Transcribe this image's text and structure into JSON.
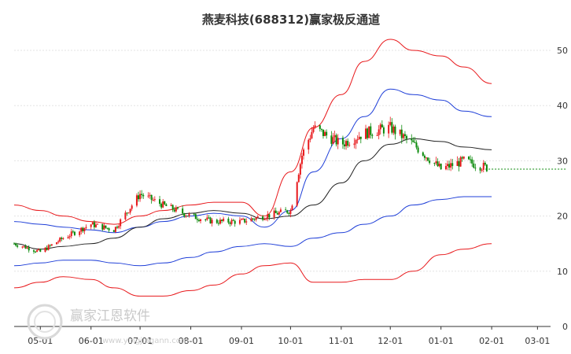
{
  "chart_data": {
    "type": "line",
    "title": "燕麦科技(688312)赢家极反通道",
    "y_ticks": [
      0,
      10,
      20,
      30,
      40,
      50
    ],
    "ylim": [
      0,
      52
    ],
    "x_ticks": [
      "05-01",
      "06-01",
      "07-01",
      "08-01",
      "09-01",
      "10-01",
      "11-01",
      "12-01",
      "01-01",
      "02-01",
      "03-01"
    ],
    "grid": true,
    "colors": {
      "upper_outer": "#e8191c",
      "upper_inner": "#1f3fd8",
      "middle": "#222222",
      "lower_inner": "#1f3fd8",
      "lower_outer": "#e8191c",
      "candle_up": "#e8191c",
      "candle_down": "#0a8a0a",
      "last_price_line": "#0a8a0a"
    },
    "channel_x": [
      "04-15",
      "05-01",
      "05-15",
      "06-01",
      "06-15",
      "07-01",
      "07-15",
      "08-01",
      "08-15",
      "09-01",
      "09-15",
      "10-01",
      "10-15",
      "11-01",
      "11-15",
      "12-01",
      "12-15",
      "01-01",
      "01-15",
      "02-01"
    ],
    "upper_outer": [
      22,
      21,
      20,
      19,
      18.5,
      20,
      21,
      22,
      22.5,
      22.5,
      20,
      28,
      36,
      42,
      48,
      52,
      50,
      49,
      47,
      44
    ],
    "upper_inner": [
      19,
      18.5,
      18,
      17.5,
      17,
      18,
      19,
      20,
      20.5,
      20,
      18,
      21,
      28,
      34,
      38,
      43,
      42,
      41,
      39,
      38
    ],
    "middle": [
      15,
      14,
      14.5,
      15,
      16,
      18,
      19.5,
      20.5,
      21,
      20.5,
      19.5,
      20,
      22,
      26,
      30,
      33,
      34,
      33.5,
      32.5,
      32
    ],
    "lower_inner": [
      11,
      11.5,
      12,
      12,
      11.5,
      11,
      11.5,
      12.5,
      13.5,
      14.5,
      15,
      14.5,
      16,
      17,
      18.5,
      20,
      22,
      23,
      23.5,
      23.5
    ],
    "lower_outer": [
      7,
      8,
      9,
      8.5,
      7,
      5.5,
      5.5,
      6.5,
      7.5,
      9.5,
      11,
      11.5,
      8,
      8,
      8.5,
      8.5,
      10,
      13,
      14,
      15
    ],
    "price_x": [
      "04-15",
      "05-01",
      "05-15",
      "06-01",
      "06-15",
      "07-01",
      "07-15",
      "08-01",
      "08-15",
      "09-01",
      "09-15",
      "10-01",
      "10-08",
      "10-15",
      "11-01",
      "11-15",
      "12-01",
      "12-15",
      "01-01",
      "01-15",
      "02-01"
    ],
    "price": [
      15,
      13.5,
      16,
      18.5,
      17.5,
      24,
      22,
      20,
      19,
      19,
      20,
      21,
      31,
      36,
      33,
      35,
      36,
      33,
      28.5,
      30,
      28.5
    ],
    "last_price": 28.5
  }
}
